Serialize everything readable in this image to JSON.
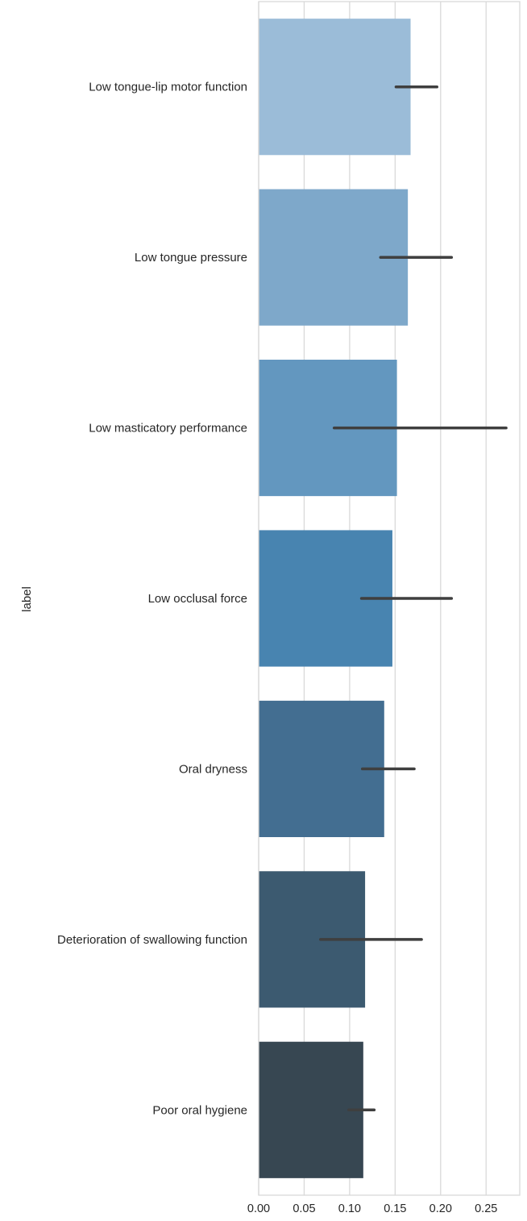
{
  "chart_data": {
    "type": "bar",
    "orientation": "horizontal",
    "ylabel": "label",
    "xlabel": "",
    "categories": [
      "Low tongue-lip motor function",
      "Low tongue pressure",
      "Low masticatory performance",
      "Low occlusal force",
      "Oral dryness",
      "Deterioration of swallowing function",
      "Poor oral hygiene"
    ],
    "values": [
      0.167,
      0.164,
      0.152,
      0.147,
      0.138,
      0.117,
      0.115
    ],
    "error_low": [
      0.151,
      0.134,
      0.083,
      0.113,
      0.114,
      0.068,
      0.099
    ],
    "error_high": [
      0.196,
      0.212,
      0.272,
      0.212,
      0.171,
      0.179,
      0.127
    ],
    "colors": [
      "#9bbcd8",
      "#7ea8ca",
      "#6397bf",
      "#4884b0",
      "#436e91",
      "#3c5a70",
      "#374752"
    ],
    "error_color": "#3f3f3f",
    "xlim": [
      0,
      0.287
    ],
    "xticks": [
      0.0,
      0.05,
      0.1,
      0.15,
      0.2,
      0.25
    ],
    "xtick_labels": [
      "0.00",
      "0.05",
      "0.10",
      "0.15",
      "0.20",
      "0.25"
    ],
    "grid": true,
    "grid_color": "#d9d9d9"
  }
}
